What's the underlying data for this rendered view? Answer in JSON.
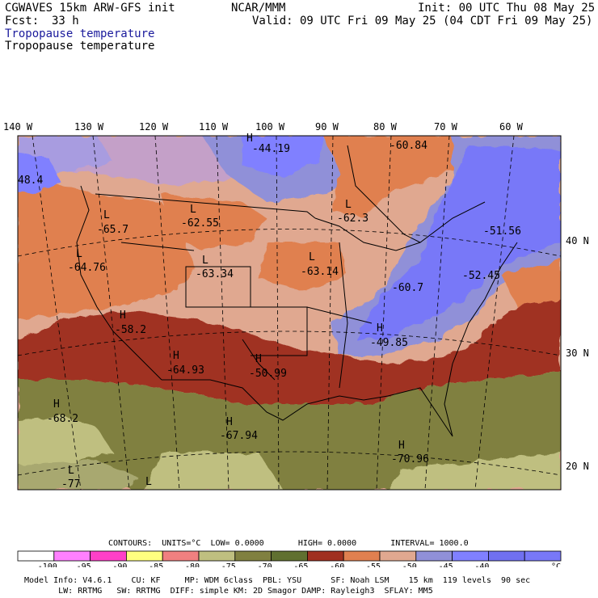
{
  "header": {
    "model": "CGWAVES 15km ARW-GFS init",
    "org": "NCAR/MMM",
    "init": "Init: 00 UTC Thu 08 May 25",
    "fcst_label": "Fcst:",
    "fcst_value": "33 h",
    "valid": "Valid: 09 UTC Fri 09 May 25 (04 CDT Fri 09 May 25)",
    "field_line1": "Tropopause temperature",
    "field_line2": "Tropopause temperature"
  },
  "longitudes": [
    "140 W",
    "130 W",
    "120 W",
    "110 W",
    "100 W",
    "90 W",
    "80 W",
    "70 W",
    "60 W"
  ],
  "latitudes": [
    "40 N",
    "30 N",
    "20 N"
  ],
  "map_labels": [
    {
      "symbol": "H",
      "value": "-44.19"
    },
    {
      "symbol": "",
      "value": "-60.84"
    },
    {
      "symbol": "",
      "value": "48.4"
    },
    {
      "symbol": "L",
      "value": "-62.55"
    },
    {
      "symbol": "L",
      "value": "-65.7"
    },
    {
      "symbol": "L",
      "value": "-62.3"
    },
    {
      "symbol": "",
      "value": "-51.56"
    },
    {
      "symbol": "L",
      "value": "-64.76"
    },
    {
      "symbol": "L",
      "value": "-63.34"
    },
    {
      "symbol": "L",
      "value": "-63.14"
    },
    {
      "symbol": "",
      "value": "-60.7"
    },
    {
      "symbol": "",
      "value": "-52.45"
    },
    {
      "symbol": "H",
      "value": "-58.2"
    },
    {
      "symbol": "H",
      "value": "-49.85"
    },
    {
      "symbol": "H",
      "value": "-64.93"
    },
    {
      "symbol": "H",
      "value": "-50.99"
    },
    {
      "symbol": "H",
      "value": "-68.2"
    },
    {
      "symbol": "H",
      "value": "-67.94"
    },
    {
      "symbol": "H",
      "value": "-70.96"
    },
    {
      "symbol": "L",
      "value": "-77"
    },
    {
      "symbol": "L",
      "value": ""
    }
  ],
  "contours": {
    "text_prefix": "CONTOURS:",
    "units": "UNITS=°C",
    "low": "LOW=",
    "low_value": "0.0000",
    "high": "HIGH=",
    "high_value": "0.0000",
    "interval": "INTERVAL=",
    "interval_value": "1000.0"
  },
  "legend": {
    "colors": [
      "#ffffff",
      "#ff80ff",
      "#ff40c8",
      "#ffff80",
      "#f08080",
      "#bfbf80",
      "#808040",
      "#607030",
      "#a03020",
      "#e08050",
      "#e0a890",
      "#9090d8",
      "#8080ff",
      "#7070f0",
      "#7878f8"
    ],
    "labels": [
      "-100",
      "-95",
      "-90",
      "-85",
      "-80",
      "-75",
      "-70",
      "-65",
      "-60",
      "-55",
      "-50",
      "-45",
      "-40"
    ],
    "unit": "°C"
  },
  "footer": {
    "line1": "Model Info: V4.6.1    CU: KF     MP: WDM 6class  PBL: YSU      SF: Noah LSM    15 km  119 levels  90 sec",
    "line2": "       LW: RRTMG   SW: RRTMG  DIFF: simple KM: 2D Smagor DAMP: Rayleigh3  SFLAY: MM5"
  }
}
